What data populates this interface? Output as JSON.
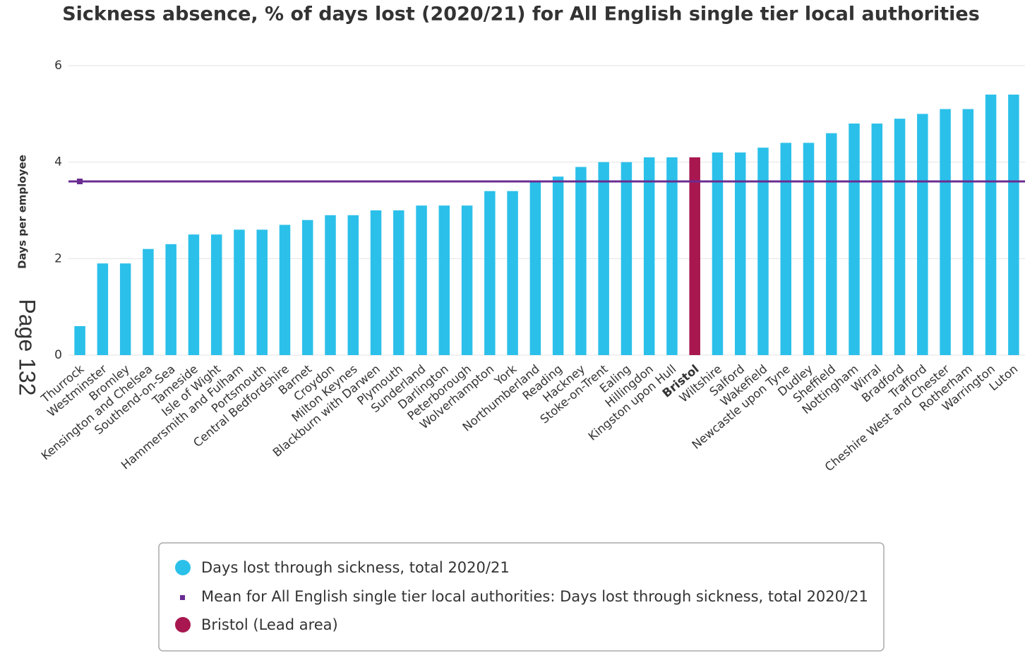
{
  "chart_data": {
    "type": "bar",
    "title": "Sickness absence, % of days lost (2020/21) for All English single tier local authorities",
    "y_label": "Days per employee",
    "page_label": "Page 132",
    "categories": [
      "Thurrock",
      "Westminster",
      "Bromley",
      "Kensington and Chelsea",
      "Southend-on-Sea",
      "Tameside",
      "Isle of Wight",
      "Hammersmith and Fulham",
      "Portsmouth",
      "Central Bedfordshire",
      "Barnet",
      "Croydon",
      "Milton Keynes",
      "Blackburn with Darwen",
      "Plymouth",
      "Sunderland",
      "Darlington",
      "Peterborough",
      "Wolverhampton",
      "York",
      "Northumberland",
      "Reading",
      "Hackney",
      "Stoke-on-Trent",
      "Ealing",
      "Hillingdon",
      "Kingston upon Hull",
      "Bristol",
      "Wiltshire",
      "Salford",
      "Wakefield",
      "Newcastle upon Tyne",
      "Dudley",
      "Sheffield",
      "Nottingham",
      "Wirral",
      "Bradford",
      "Trafford",
      "Cheshire West and Chester",
      "Rotherham",
      "Warrington",
      "Luton"
    ],
    "series": [
      {
        "name": "Days lost through sickness, total 2020/21",
        "color": "#2bc0ea",
        "values": [
          0.6,
          1.9,
          1.9,
          2.2,
          2.3,
          2.5,
          2.5,
          2.6,
          2.6,
          2.7,
          2.8,
          2.9,
          2.9,
          3.0,
          3.0,
          3.1,
          3.1,
          3.1,
          3.4,
          3.4,
          3.6,
          3.7,
          3.9,
          4.0,
          4.0,
          4.1,
          4.1,
          4.1,
          4.2,
          4.2,
          4.3,
          4.4,
          4.4,
          4.6,
          4.8,
          4.8,
          4.9,
          5.0,
          5.1,
          5.1,
          5.4,
          5.4
        ]
      }
    ],
    "lead_area": {
      "name": "Bristol (Lead area)",
      "color": "#a8174f"
    },
    "bar_colors": [
      "#2bc0ea",
      "#2bc0ea",
      "#2bc0ea",
      "#2bc0ea",
      "#2bc0ea",
      "#2bc0ea",
      "#2bc0ea",
      "#2bc0ea",
      "#2bc0ea",
      "#2bc0ea",
      "#2bc0ea",
      "#2bc0ea",
      "#2bc0ea",
      "#2bc0ea",
      "#2bc0ea",
      "#2bc0ea",
      "#2bc0ea",
      "#2bc0ea",
      "#2bc0ea",
      "#2bc0ea",
      "#2bc0ea",
      "#2bc0ea",
      "#2bc0ea",
      "#2bc0ea",
      "#2bc0ea",
      "#2bc0ea",
      "#2bc0ea",
      "#a8174f",
      "#2bc0ea",
      "#2bc0ea",
      "#2bc0ea",
      "#2bc0ea",
      "#2bc0ea",
      "#2bc0ea",
      "#2bc0ea",
      "#2bc0ea",
      "#2bc0ea",
      "#2bc0ea",
      "#2bc0ea",
      "#2bc0ea",
      "#2bc0ea",
      "#2bc0ea"
    ],
    "mean": {
      "name": "Mean for All English single tier local authorities: Days lost through sickness, total 2020/21",
      "value": 3.6,
      "color": "#6a2c91"
    },
    "ylim": [
      0,
      6
    ],
    "yticks": [
      0,
      2,
      4,
      6
    ],
    "grid": true
  }
}
